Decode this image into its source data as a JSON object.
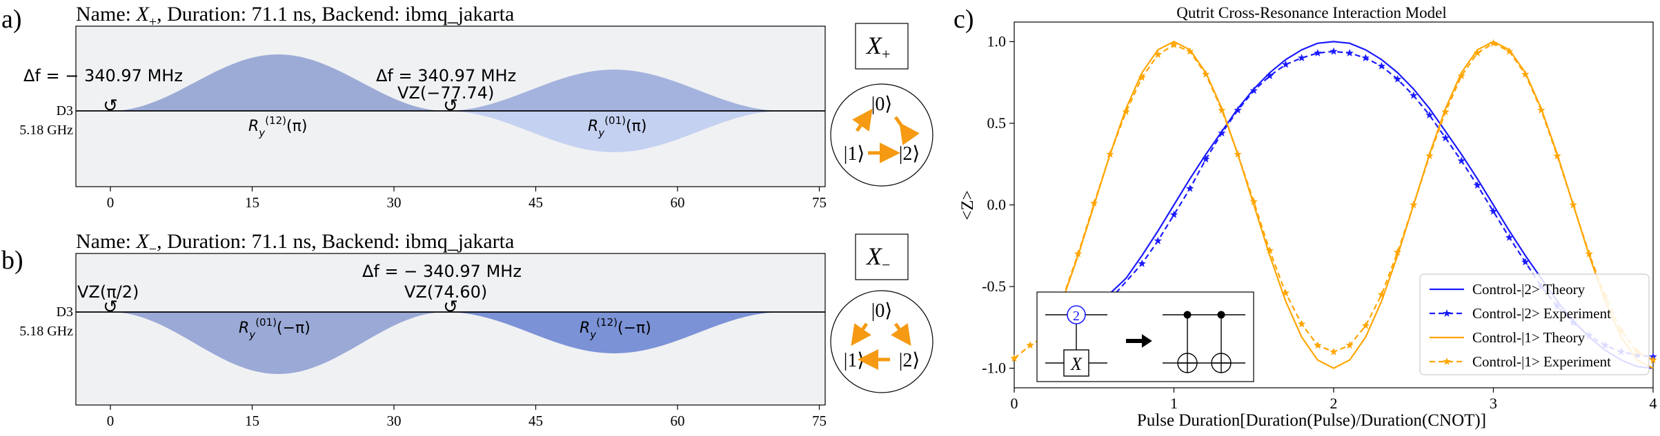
{
  "panel_a": {
    "label": "a)",
    "title_prefix": "Name: ",
    "title_name": "X",
    "title_sub": "+",
    "title_suffix": ", Duration: 71.1 ns, Backend: ibmq_jakarta",
    "channel": "D3",
    "freq": "5.18 GHz",
    "ann_df1": "Δf = − 340.97 MHz",
    "ann_df2": "Δf = 340.97 MHz",
    "ann_vz": "VZ(−77.74)",
    "pulse1_label": "R_y^(12)(π)",
    "pulse2_label": "R_y^(01)(π)",
    "gate_label": "X",
    "gate_sub": "+"
  },
  "panel_b": {
    "label": "b)",
    "title_prefix": "Name: ",
    "title_name": "X",
    "title_sub": "−",
    "title_suffix": ", Duration: 71.1 ns, Backend: ibmq_jakarta",
    "channel": "D3",
    "freq": "5.18 GHz",
    "ann_vz1": "VZ(π/2)",
    "ann_df": "Δf = − 340.97 MHz",
    "ann_vz2": "VZ(74.60)",
    "pulse1_label": "R_y^(01)(−π)",
    "pulse2_label": "R_y^(12)(−π)",
    "gate_label": "X",
    "gate_sub": "−"
  },
  "x_ticks": [
    "0",
    "15",
    "30",
    "45",
    "60",
    "75"
  ],
  "state_labels": [
    "|0⟩",
    "|1⟩",
    "|2⟩"
  ],
  "panel_c": {
    "label": "c)",
    "title": "Qutrit Cross-Resonance Interaction Model",
    "xlabel": "Pulse Duration[Duration(Pulse)/Duration(CNOT)]",
    "ylabel": "<Z>",
    "legend": [
      "Control-|2> Theory",
      "Control-|2> Experiment",
      "Control-|1> Theory",
      "Control-|1> Experiment"
    ],
    "inset_label_2": "2",
    "inset_label_x": "X"
  },
  "colors": {
    "pulse_dark": "#8d9fd0",
    "pulse_light": "#c5d1f1",
    "pulse_deep": "#7b92d6",
    "blue": "#1a1aff",
    "orange": "#ffa500",
    "arrow": "#f59a12"
  },
  "chart_data": {
    "type": "line",
    "title": "Qutrit Cross-Resonance Interaction Model",
    "xlabel": "Pulse Duration[Duration(Pulse)/Duration(CNOT)]",
    "ylabel": "<Z>",
    "xlim": [
      0,
      4
    ],
    "ylim": [
      -1.12,
      1.12
    ],
    "x_ticks": [
      "0",
      "1",
      "2",
      "3",
      "4"
    ],
    "y_ticks": [
      "-1.0",
      "-0.5",
      "0.0",
      "0.5",
      "1.0"
    ],
    "legend_position": "lower-right",
    "series": [
      {
        "name": "Control-|2> Theory",
        "color": "#1a1aff",
        "style": "solid",
        "x": [
          0.58,
          0.7,
          0.8,
          0.9,
          1.0,
          1.1,
          1.2,
          1.3,
          1.4,
          1.5,
          1.6,
          1.7,
          1.8,
          1.9,
          2.0,
          2.1,
          2.2,
          2.3,
          2.4,
          2.5,
          2.6,
          2.7,
          2.8,
          2.9,
          3.0,
          3.1,
          3.2,
          3.3,
          3.4,
          3.5,
          3.6,
          3.7,
          3.8,
          3.9,
          4.0
        ],
        "y": [
          -0.56,
          -0.45,
          -0.31,
          -0.16,
          0.0,
          0.16,
          0.31,
          0.45,
          0.59,
          0.71,
          0.81,
          0.89,
          0.95,
          0.99,
          1.0,
          0.99,
          0.95,
          0.89,
          0.81,
          0.71,
          0.59,
          0.45,
          0.31,
          0.16,
          0.0,
          -0.16,
          -0.31,
          -0.45,
          -0.59,
          -0.71,
          -0.81,
          -0.89,
          -0.95,
          -0.99,
          -1.0
        ]
      },
      {
        "name": "Control-|2> Experiment",
        "color": "#1a1aff",
        "style": "dashed-star",
        "x": [
          0.6,
          0.8,
          0.9,
          1.0,
          1.1,
          1.2,
          1.3,
          1.4,
          1.5,
          1.6,
          1.7,
          1.8,
          1.9,
          2.0,
          2.1,
          2.2,
          2.3,
          2.4,
          2.5,
          2.6,
          2.7,
          2.8,
          2.9,
          3.0,
          3.1,
          3.2,
          3.3,
          3.4,
          3.5,
          3.6,
          3.7,
          3.8,
          3.9,
          4.0
        ],
        "y": [
          -0.58,
          -0.36,
          -0.22,
          -0.06,
          0.1,
          0.28,
          0.44,
          0.58,
          0.7,
          0.79,
          0.86,
          0.9,
          0.93,
          0.94,
          0.93,
          0.9,
          0.85,
          0.77,
          0.67,
          0.55,
          0.41,
          0.27,
          0.12,
          -0.04,
          -0.2,
          -0.35,
          -0.5,
          -0.62,
          -0.72,
          -0.8,
          -0.86,
          -0.9,
          -0.92,
          -0.93
        ]
      },
      {
        "name": "Control-|1> Theory",
        "color": "#ffa500",
        "style": "solid",
        "x": [
          0.3,
          0.4,
          0.5,
          0.6,
          0.7,
          0.8,
          0.9,
          1.0,
          1.1,
          1.2,
          1.3,
          1.4,
          1.5,
          1.6,
          1.7,
          1.8,
          1.9,
          2.0,
          2.1,
          2.2,
          2.3,
          2.4,
          2.5,
          2.6,
          2.7,
          2.8,
          2.9,
          3.0,
          3.1,
          3.2,
          3.3,
          3.4,
          3.5,
          3.6,
          3.7,
          3.8,
          3.9,
          4.0
        ],
        "y": [
          -0.59,
          -0.31,
          0.0,
          0.31,
          0.59,
          0.81,
          0.95,
          1.0,
          0.95,
          0.81,
          0.59,
          0.31,
          0.0,
          -0.31,
          -0.59,
          -0.81,
          -0.95,
          -1.0,
          -0.95,
          -0.81,
          -0.59,
          -0.31,
          0.0,
          0.31,
          0.59,
          0.81,
          0.95,
          1.0,
          0.95,
          0.81,
          0.59,
          0.31,
          0.0,
          -0.31,
          -0.59,
          -0.81,
          -0.95,
          -1.0
        ]
      },
      {
        "name": "Control-|1> Experiment",
        "color": "#ffa500",
        "style": "dashed-star",
        "x": [
          0.0,
          0.1,
          0.2,
          0.3,
          0.4,
          0.5,
          0.6,
          0.7,
          0.8,
          0.9,
          1.0,
          1.1,
          1.2,
          1.3,
          1.4,
          1.5,
          1.6,
          1.7,
          1.8,
          1.9,
          2.0,
          2.1,
          2.2,
          2.3,
          2.4,
          2.5,
          2.6,
          2.7,
          2.8,
          2.9,
          3.0,
          3.1,
          3.2,
          3.3,
          3.4,
          3.5,
          3.6,
          3.7,
          3.8,
          3.9,
          4.0
        ],
        "y": [
          -0.94,
          -0.86,
          -0.8,
          -0.58,
          -0.3,
          0.01,
          0.31,
          0.57,
          0.78,
          0.92,
          0.98,
          0.94,
          0.8,
          0.58,
          0.31,
          0.02,
          -0.28,
          -0.54,
          -0.73,
          -0.86,
          -0.9,
          -0.86,
          -0.74,
          -0.55,
          -0.29,
          0.0,
          0.3,
          0.57,
          0.79,
          0.93,
          0.99,
          0.94,
          0.8,
          0.58,
          0.3,
          0.0,
          -0.3,
          -0.56,
          -0.77,
          -0.9,
          -0.95
        ]
      }
    ]
  }
}
